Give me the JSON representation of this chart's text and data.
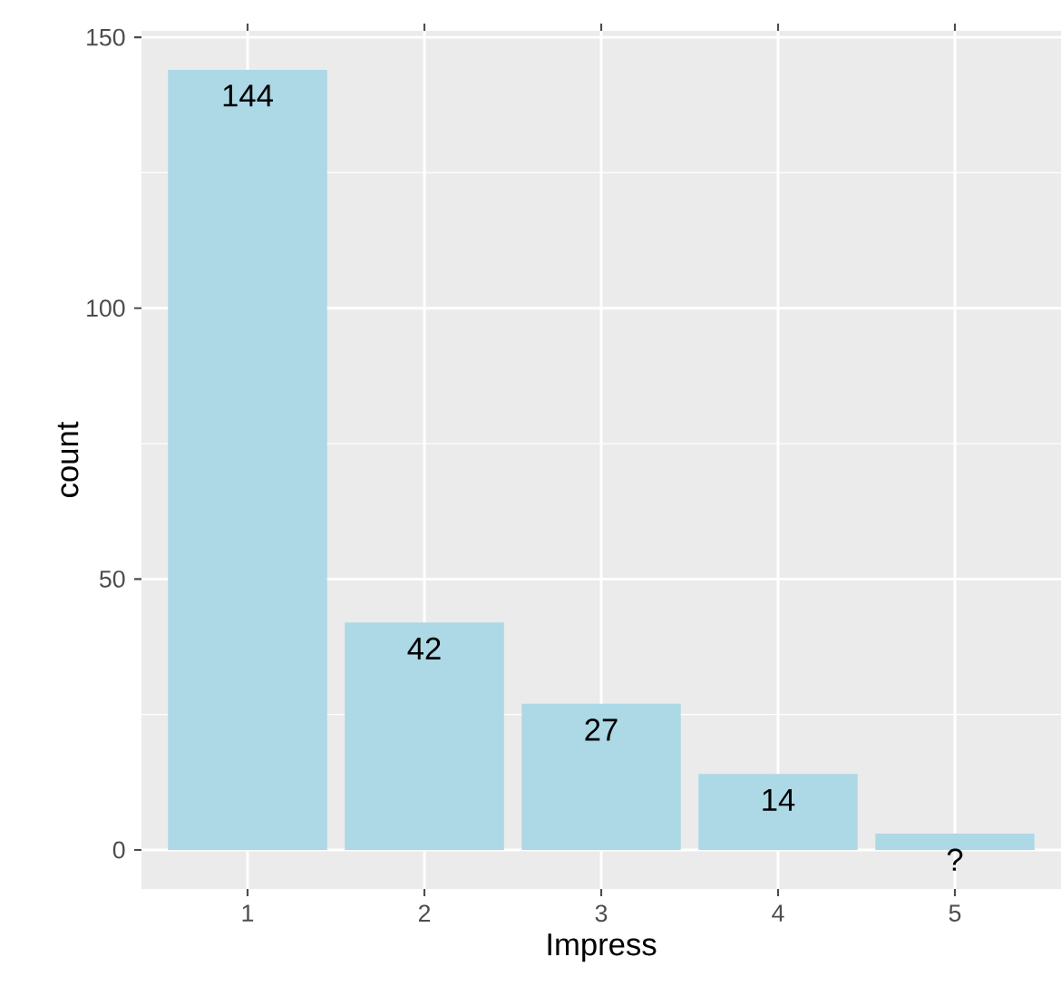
{
  "chart_data": {
    "type": "bar",
    "xlabel": "Impress",
    "ylabel": "count",
    "categories": [
      "1",
      "2",
      "3",
      "4",
      "5"
    ],
    "values": [
      144,
      42,
      27,
      14,
      3
    ],
    "value_labels": [
      "144",
      "42",
      "27",
      "14",
      "?"
    ],
    "color": "#add8e6",
    "ylim": [
      -7.2,
      151.2
    ],
    "yticks": [
      0,
      50,
      100,
      150
    ],
    "grid": true
  }
}
